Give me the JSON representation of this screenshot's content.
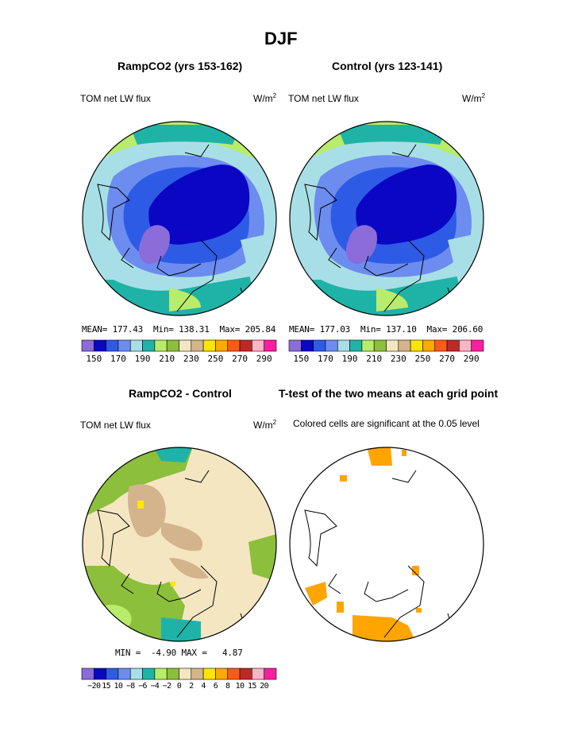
{
  "figure": {
    "title": "DJF"
  },
  "chart_data": [
    {
      "type": "heatmap",
      "title": "RampCO2 (yrs 153-162)",
      "variable": "TOM net LW flux",
      "units_base": "W/m",
      "units_exp": "2",
      "stats": {
        "mean_label": "MEAN=",
        "mean": "177.43",
        "min_label": "Min=",
        "min": "138.31",
        "max_label": "Max=",
        "max": "205.84"
      },
      "colorbar": {
        "ticks": [
          "150",
          "170",
          "190",
          "210",
          "230",
          "250",
          "270",
          "290"
        ],
        "colors": [
          "#8c6cd8",
          "#0b06c4",
          "#2e5be6",
          "#6c8cf0",
          "#a8dfe6",
          "#1fb3a8",
          "#b8ec6a",
          "#8cbf3c",
          "#f5e6c2",
          "#d4b48c",
          "#ffe600",
          "#ffaa00",
          "#ff5a1a",
          "#c02828",
          "#ffb4c8",
          "#ff1ea0"
        ]
      }
    },
    {
      "type": "heatmap",
      "title": "Control (yrs 123-141)",
      "variable": "TOM net LW flux",
      "units_base": "W/m",
      "units_exp": "2",
      "stats": {
        "mean_label": "MEAN=",
        "mean": "177.03",
        "min_label": "Min=",
        "min": "137.10",
        "max_label": "Max=",
        "max": "206.60"
      },
      "colorbar": {
        "ticks": [
          "150",
          "170",
          "190",
          "210",
          "230",
          "250",
          "270",
          "290"
        ],
        "colors": [
          "#8c6cd8",
          "#0b06c4",
          "#2e5be6",
          "#6c8cf0",
          "#a8dfe6",
          "#1fb3a8",
          "#b8ec6a",
          "#8cbf3c",
          "#f5e6c2",
          "#d4b48c",
          "#ffe600",
          "#ffaa00",
          "#ff5a1a",
          "#c02828",
          "#ffb4c8",
          "#ff1ea0"
        ]
      }
    },
    {
      "type": "heatmap",
      "title": "RampCO2 - Control",
      "variable": "TOM net LW flux",
      "units_base": "W/m",
      "units_exp": "2",
      "stats": {
        "min_label": "MIN =",
        "min": "-4.90",
        "max_label": "MAX =",
        "max": "4.87"
      },
      "colorbar": {
        "ticks": [
          "−20",
          "15",
          "10",
          "−8",
          "−6",
          "−4",
          "−2",
          "0",
          "2",
          "4",
          "6",
          "8",
          "10",
          "15",
          "20"
        ],
        "colors": [
          "#8c6cd8",
          "#0b06c4",
          "#2e5be6",
          "#6c8cf0",
          "#a8dfe6",
          "#1fb3a8",
          "#b8ec6a",
          "#8cbf3c",
          "#f5e6c2",
          "#d4b48c",
          "#ffe600",
          "#ffaa00",
          "#ff5a1a",
          "#c02828",
          "#ffb4c8",
          "#ff1ea0"
        ]
      }
    },
    {
      "type": "heatmap",
      "title": "T-test of the two means at each grid point",
      "subtitle": "Colored cells are significant at the 0.05 level",
      "significant_color": "#ffa500"
    }
  ],
  "colors": {
    "ocean_light": "#a8dfe6",
    "teal": "#1fb3a8",
    "green_light": "#b8ec6a",
    "green": "#8cbf3c",
    "blue_mid": "#6c8cf0",
    "blue": "#2e5be6",
    "blue_dark": "#0b06c4",
    "purple": "#8c6cd8",
    "tan_light": "#f5e6c2",
    "tan": "#d4b48c",
    "yellow": "#ffe600",
    "orange": "#ffa500"
  }
}
